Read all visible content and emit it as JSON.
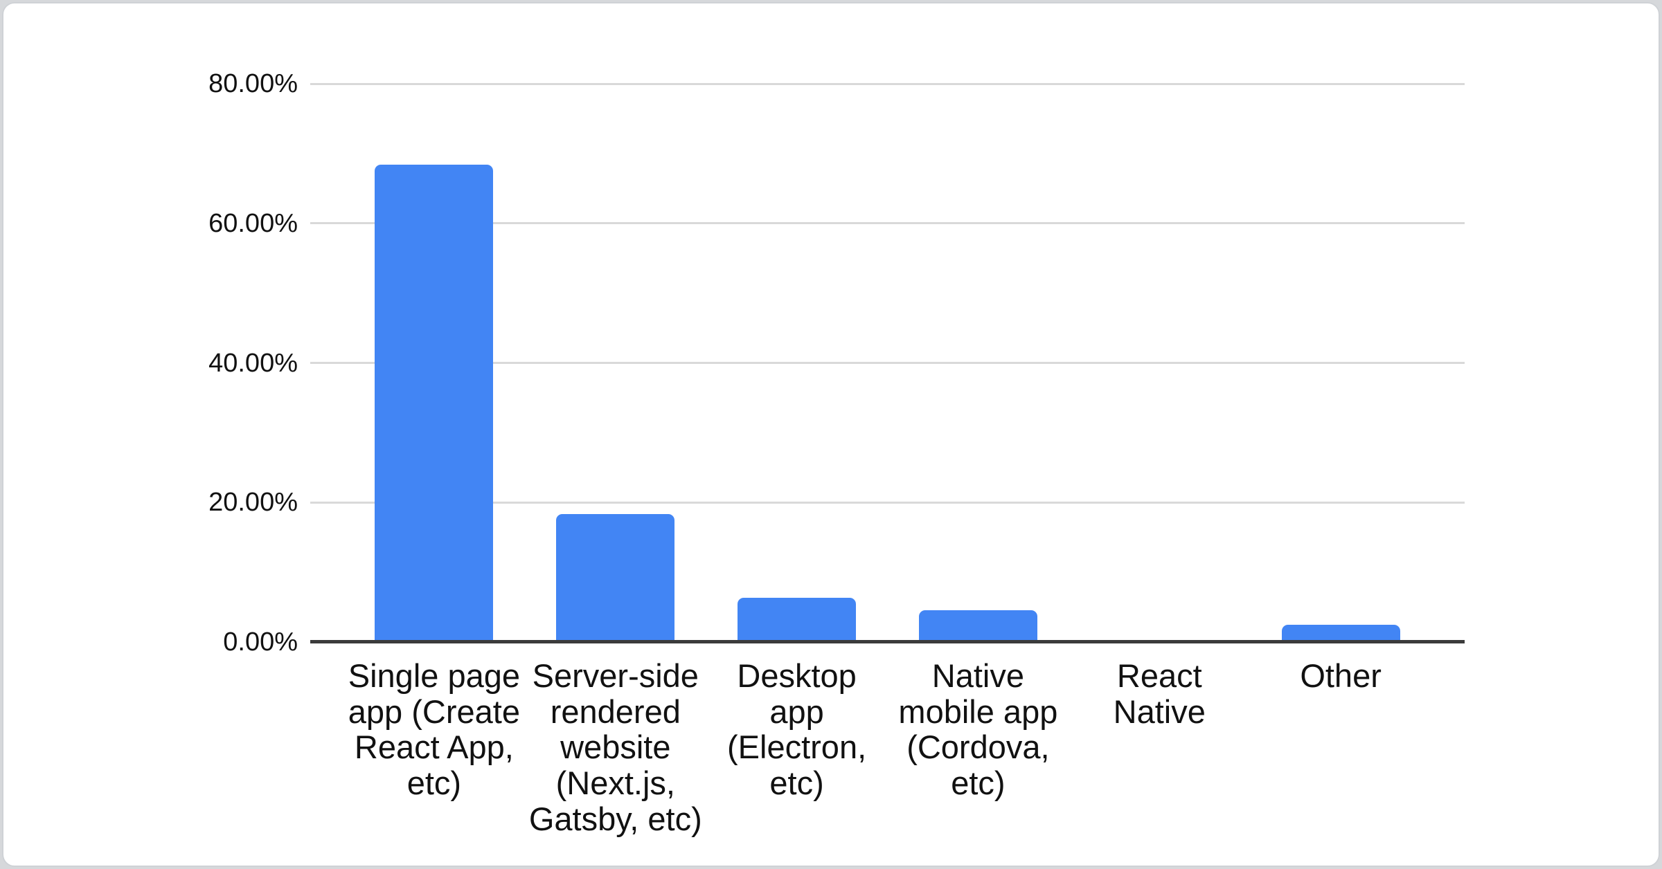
{
  "chart_data": {
    "type": "bar",
    "title": "",
    "xlabel": "",
    "ylabel": "",
    "categories": [
      "Single page app (Create React App, etc)",
      "Server-side rendered website (Next.js, Gatsby, etc)",
      "Desktop app (Electron, etc)",
      "Native mobile app (Cordova, etc)",
      "React Native",
      "Other"
    ],
    "values": [
      68.4,
      18.3,
      6.3,
      4.6,
      0,
      2.5
    ],
    "value_unit": "%",
    "ylim": [
      0,
      80
    ],
    "yticks": {
      "values": [
        0,
        20,
        40,
        60,
        80
      ],
      "labels": [
        "0.00%",
        "20.00%",
        "40.00%",
        "60.00%",
        "80.00%"
      ]
    },
    "grid": true,
    "legend": "none",
    "colors": {
      "bar": "#4285f4",
      "gridline": "#d9d9d9",
      "baseline": "#3b3b3b",
      "axis_text": "#111111",
      "category_text": "#111111",
      "card_background": "#ffffff",
      "page_background": "#d6d8db",
      "card_border": "#cfd2d6"
    }
  }
}
